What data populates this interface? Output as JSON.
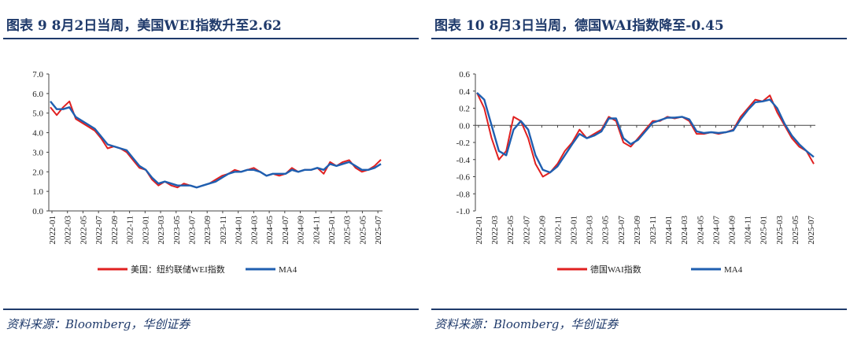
{
  "panels": [
    {
      "title": "图表 9   8月2日当周，美国WEI指数升至2.62",
      "source": "资料来源：Bloomberg，华创证券"
    },
    {
      "title": "图表 10   8月3日当周，德国WAI指数降至-0.45",
      "source": "资料来源：Bloomberg，华创证券"
    }
  ],
  "chart_data": [
    {
      "type": "line",
      "title": "",
      "xlabel": "",
      "ylabel": "",
      "ylim": [
        0.0,
        7.0
      ],
      "y_ticks": [
        "7.0",
        "6.0",
        "5.0",
        "4.0",
        "3.0",
        "2.0",
        "1.0",
        "0.0"
      ],
      "x_ticks": [
        "2022-01",
        "2022-03",
        "2022-05",
        "2022-07",
        "2022-09",
        "2022-11",
        "2023-01",
        "2023-03",
        "2023-05",
        "2023-07",
        "2023-09",
        "2023-11",
        "2024-01",
        "2024-03",
        "2024-05",
        "2024-07",
        "2024-09",
        "2024-11",
        "2025-01",
        "2025-03",
        "2025-05",
        "2025-07"
      ],
      "grid": false,
      "legend_position": "bottom-center",
      "x_step": "monthly (2022-01 to 2025-08)",
      "series": [
        {
          "name": "美国：纽约联储WEI指数",
          "color": "#e02020",
          "values": [
            5.3,
            4.9,
            5.3,
            5.6,
            4.7,
            4.5,
            4.3,
            4.1,
            3.7,
            3.2,
            3.3,
            3.2,
            3.0,
            2.6,
            2.2,
            2.1,
            1.6,
            1.3,
            1.5,
            1.3,
            1.2,
            1.4,
            1.3,
            1.2,
            1.3,
            1.4,
            1.6,
            1.8,
            1.9,
            2.1,
            2.0,
            2.1,
            2.2,
            2.0,
            1.8,
            1.9,
            1.8,
            1.9,
            2.2,
            2.0,
            2.1,
            2.1,
            2.2,
            1.9,
            2.5,
            2.3,
            2.5,
            2.6,
            2.2,
            2.0,
            2.1,
            2.3,
            2.62
          ]
        },
        {
          "name": "MA4",
          "color": "#1f5fb0",
          "values": [
            5.6,
            5.2,
            5.2,
            5.3,
            4.8,
            4.6,
            4.4,
            4.2,
            3.8,
            3.4,
            3.3,
            3.2,
            3.1,
            2.7,
            2.3,
            2.1,
            1.7,
            1.4,
            1.5,
            1.4,
            1.3,
            1.3,
            1.3,
            1.2,
            1.3,
            1.4,
            1.5,
            1.7,
            1.9,
            2.0,
            2.0,
            2.1,
            2.1,
            2.0,
            1.8,
            1.9,
            1.9,
            1.9,
            2.1,
            2.0,
            2.1,
            2.1,
            2.2,
            2.1,
            2.4,
            2.3,
            2.4,
            2.5,
            2.3,
            2.1,
            2.1,
            2.2,
            2.4
          ]
        }
      ]
    },
    {
      "type": "line",
      "title": "",
      "xlabel": "",
      "ylabel": "",
      "ylim": [
        -1.0,
        0.6
      ],
      "y_ticks": [
        "0.6",
        "0.4",
        "0.2",
        "0.0",
        "-0.2",
        "-0.4",
        "-0.6",
        "-0.8",
        "-1.0"
      ],
      "x_ticks": [
        "2022-01",
        "2022-03",
        "2022-05",
        "2022-07",
        "2022-09",
        "2022-11",
        "2023-01",
        "2023-03",
        "2023-05",
        "2023-07",
        "2023-09",
        "2023-11",
        "2024-01",
        "2024-03",
        "2024-05",
        "2024-07",
        "2024-09",
        "2024-11",
        "2025-01",
        "2025-03",
        "2025-05",
        "2025-07"
      ],
      "grid": false,
      "legend_position": "bottom-center",
      "x_step": "monthly (2022-01 to 2025-08)",
      "series": [
        {
          "name": "德国WAI指数",
          "color": "#e02020",
          "values": [
            0.38,
            0.2,
            -0.15,
            -0.4,
            -0.3,
            0.1,
            0.05,
            -0.15,
            -0.45,
            -0.6,
            -0.55,
            -0.45,
            -0.3,
            -0.2,
            -0.05,
            -0.15,
            -0.1,
            -0.05,
            0.1,
            0.05,
            -0.2,
            -0.25,
            -0.15,
            -0.05,
            0.05,
            0.05,
            0.1,
            0.08,
            0.1,
            0.05,
            -0.1,
            -0.1,
            -0.08,
            -0.1,
            -0.08,
            -0.05,
            0.1,
            0.2,
            0.3,
            0.28,
            0.35,
            0.15,
            0.0,
            -0.15,
            -0.25,
            -0.3,
            -0.45
          ]
        },
        {
          "name": "MA4",
          "color": "#1f5fb0",
          "values": [
            0.38,
            0.3,
            0.0,
            -0.3,
            -0.35,
            -0.05,
            0.05,
            -0.05,
            -0.35,
            -0.52,
            -0.55,
            -0.48,
            -0.35,
            -0.22,
            -0.1,
            -0.15,
            -0.12,
            -0.07,
            0.08,
            0.08,
            -0.15,
            -0.22,
            -0.17,
            -0.07,
            0.03,
            0.06,
            0.09,
            0.09,
            0.1,
            0.07,
            -0.07,
            -0.09,
            -0.08,
            -0.09,
            -0.08,
            -0.06,
            0.07,
            0.18,
            0.27,
            0.28,
            0.3,
            0.2,
            0.02,
            -0.12,
            -0.22,
            -0.3,
            -0.37
          ]
        }
      ]
    }
  ]
}
